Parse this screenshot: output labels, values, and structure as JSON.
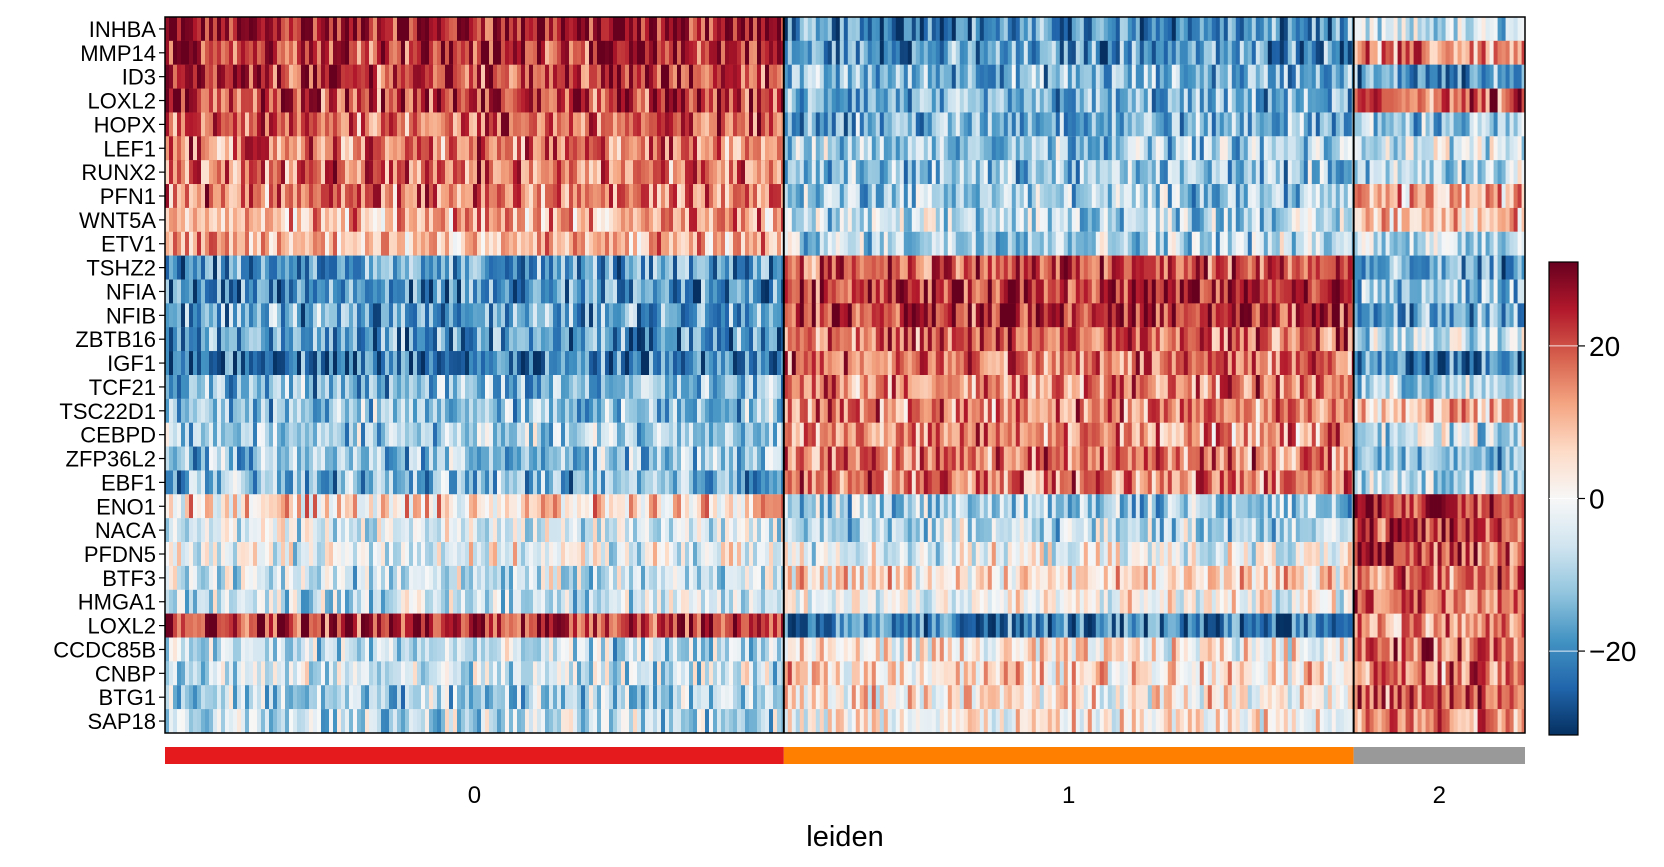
{
  "chart_data": {
    "type": "heatmap",
    "xlabel": "leiden",
    "genes": [
      "INHBA",
      "MMP14",
      "ID3",
      "LOXL2",
      "HOPX",
      "LEF1",
      "RUNX2",
      "PFN1",
      "WNT5A",
      "ETV1",
      "TSHZ2",
      "NFIA",
      "NFIB",
      "ZBTB16",
      "IGF1",
      "TCF21",
      "TSC22D1",
      "CEBPD",
      "ZFP36L2",
      "EBF1",
      "ENO1",
      "NACA",
      "PFDN5",
      "BTF3",
      "HMGA1",
      "LOXL2",
      "CCDC85B",
      "CNBP",
      "BTG1",
      "SAP18"
    ],
    "groups": [
      {
        "name": "0",
        "color": "#e41a1c",
        "fraction": 0.455
      },
      {
        "name": "1",
        "color": "#ff7f00",
        "fraction": 0.419
      },
      {
        "name": "2",
        "color": "#999999",
        "fraction": 0.126
      }
    ],
    "mean_values": [
      [
        26,
        -20,
        -8
      ],
      [
        24,
        -18,
        14
      ],
      [
        22,
        -14,
        -18
      ],
      [
        22,
        -16,
        18
      ],
      [
        18,
        -14,
        -12
      ],
      [
        16,
        -10,
        -4
      ],
      [
        17,
        -12,
        -8
      ],
      [
        16,
        -10,
        10
      ],
      [
        12,
        -8,
        10
      ],
      [
        10,
        -8,
        -6
      ],
      [
        -18,
        20,
        -18
      ],
      [
        -20,
        24,
        -12
      ],
      [
        -16,
        24,
        -16
      ],
      [
        -18,
        18,
        -8
      ],
      [
        -22,
        18,
        -20
      ],
      [
        -14,
        16,
        -10
      ],
      [
        -12,
        16,
        10
      ],
      [
        -10,
        14,
        -6
      ],
      [
        -12,
        16,
        -14
      ],
      [
        -14,
        16,
        -8
      ],
      [
        6,
        -10,
        26
      ],
      [
        -4,
        -8,
        22
      ],
      [
        -2,
        -2,
        22
      ],
      [
        -6,
        6,
        18
      ],
      [
        -6,
        0,
        20
      ],
      [
        24,
        -22,
        14
      ],
      [
        -8,
        2,
        18
      ],
      [
        -6,
        6,
        16
      ],
      [
        -10,
        4,
        18
      ],
      [
        -8,
        2,
        16
      ]
    ],
    "colorbar": {
      "colormap": "RdBu_r",
      "range": [
        -31,
        31
      ],
      "ticks": [
        20,
        0,
        -20
      ],
      "tick_labels": [
        "20",
        "0",
        "−20"
      ]
    }
  }
}
